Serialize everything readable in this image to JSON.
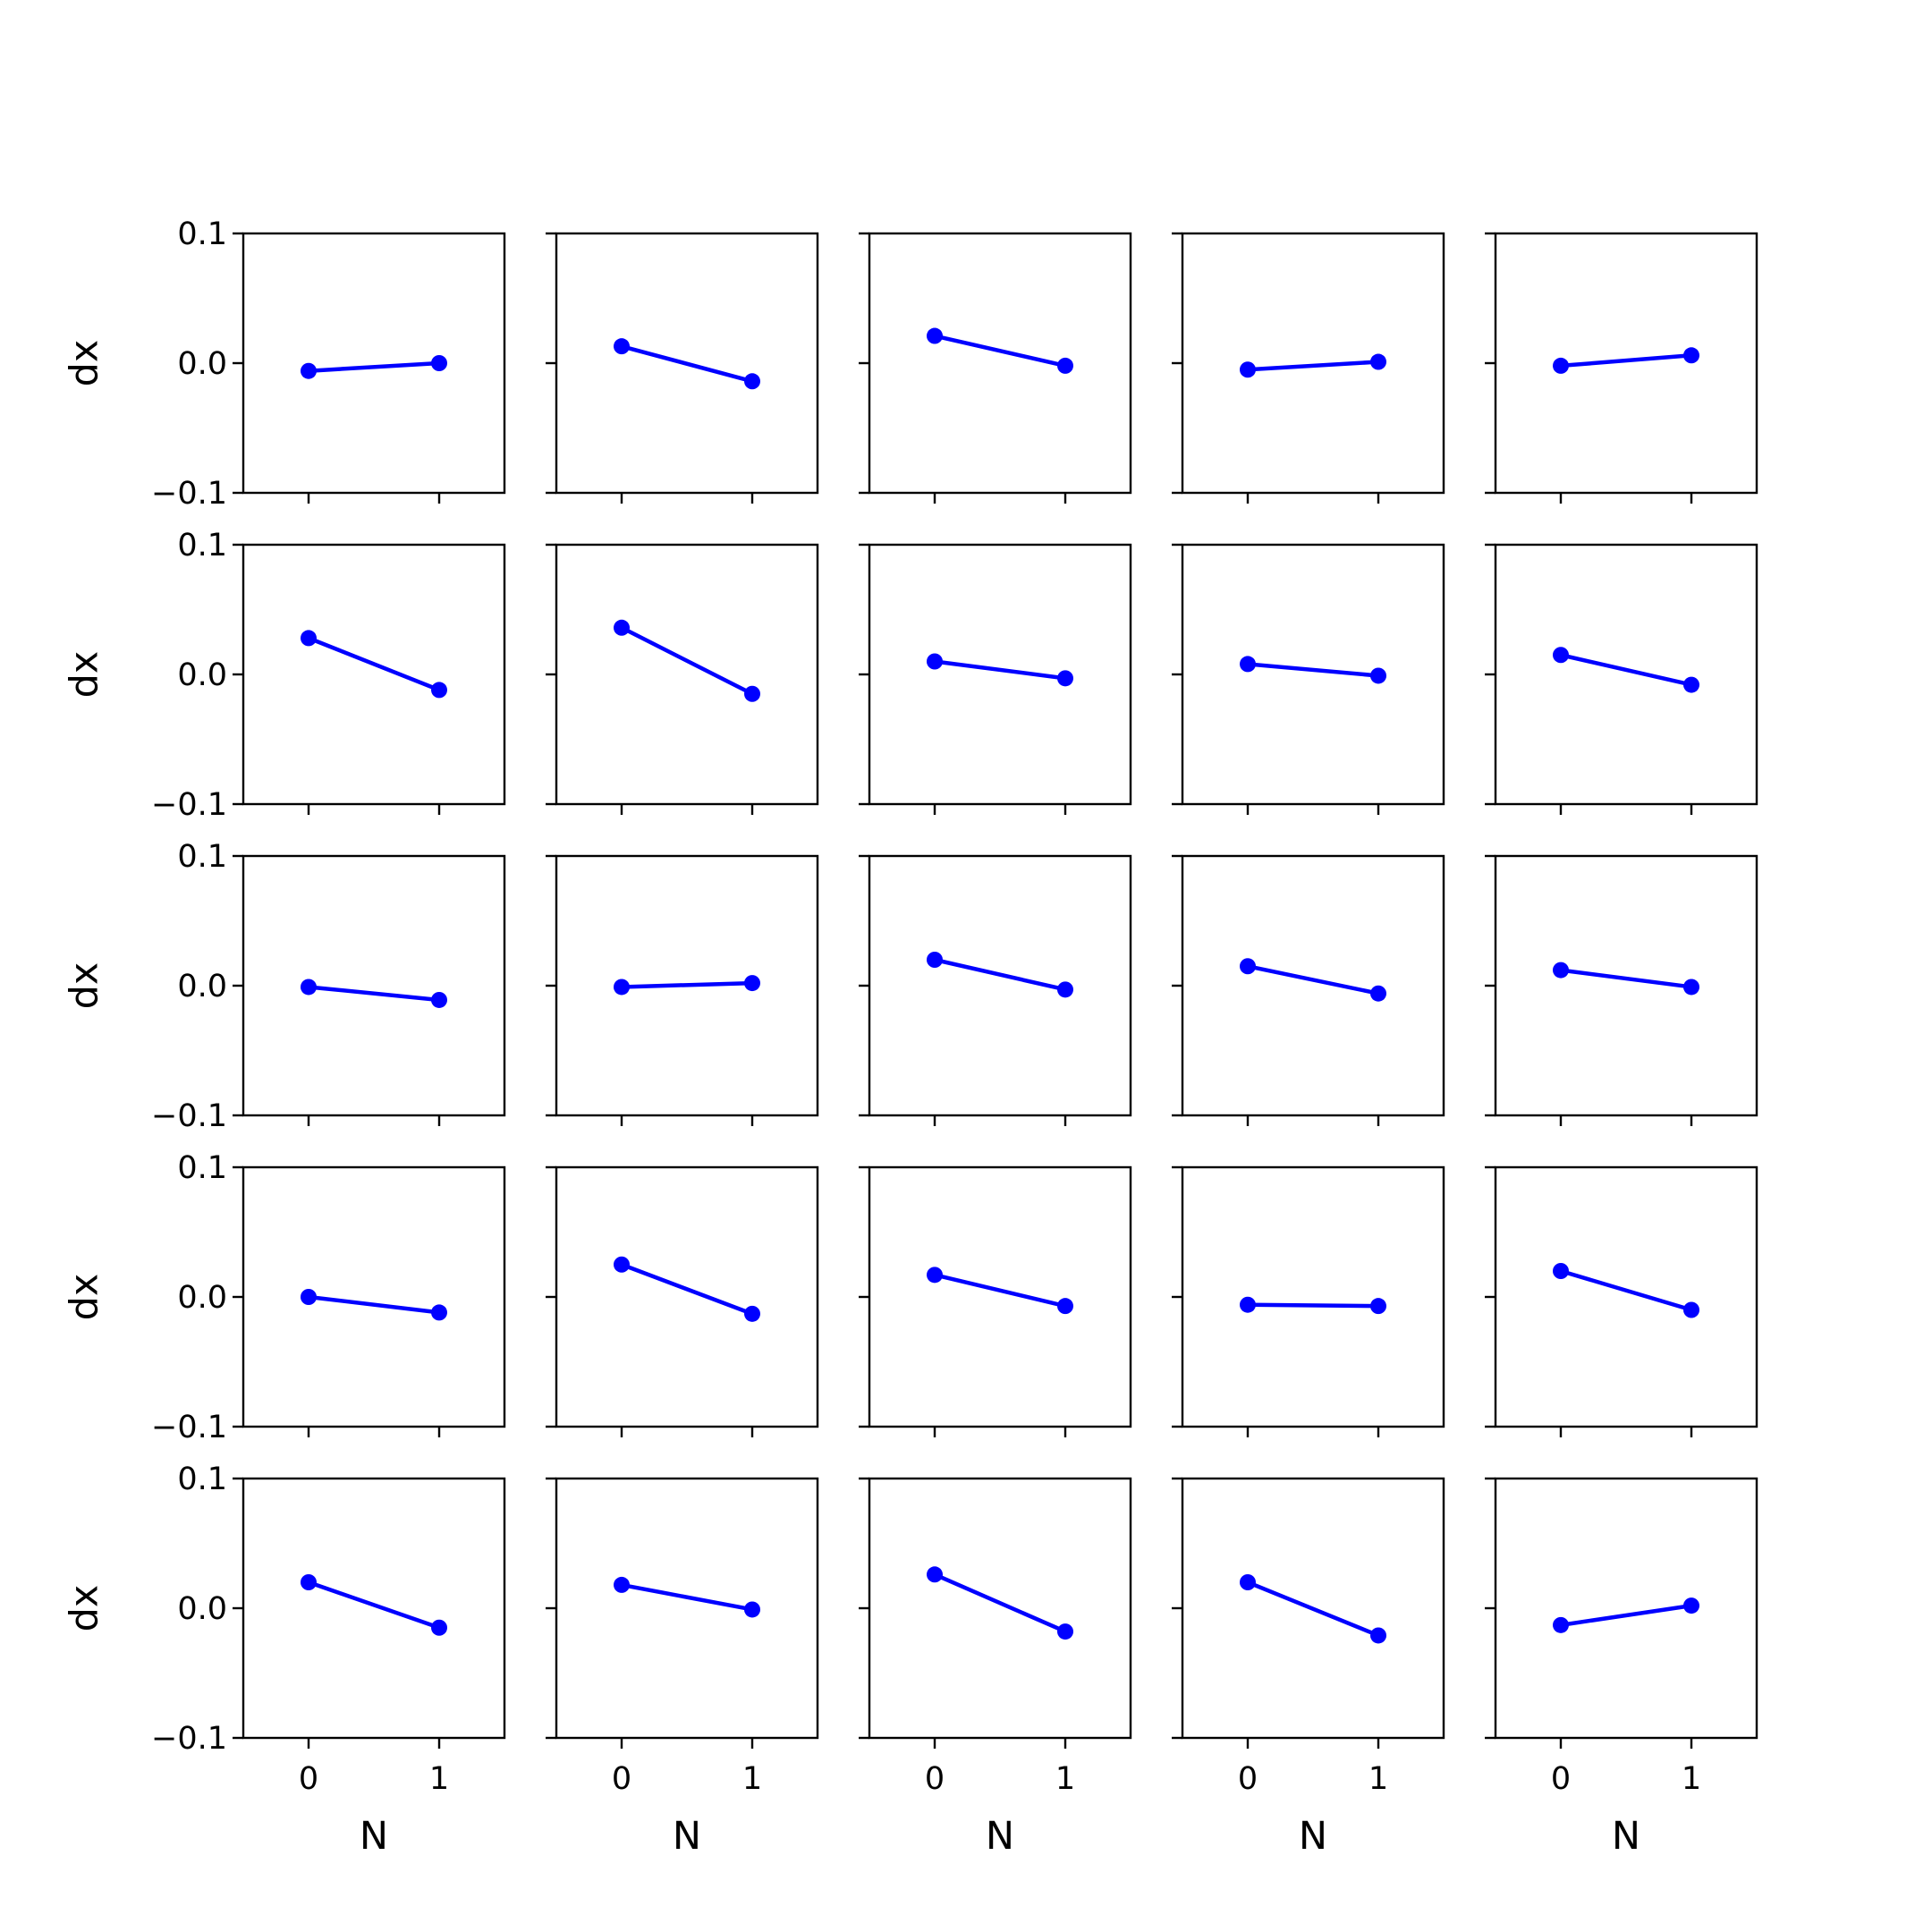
{
  "chart_data": {
    "type": "line",
    "layout": "5x5 small multiples",
    "xlabel": "N",
    "ylabel": "dx",
    "x": [
      0,
      1
    ],
    "xticks": [
      "0",
      "1"
    ],
    "yticks": [
      "0.1",
      "0.0",
      "−0.1"
    ],
    "ylim": [
      -0.1,
      0.1
    ],
    "xlim": [
      -0.5,
      1.5
    ],
    "grid": false,
    "line_color": "#0000ff",
    "panels": [
      [
        [
          -0.006,
          0.0
        ],
        [
          0.013,
          -0.014
        ],
        [
          0.021,
          -0.002
        ],
        [
          -0.005,
          0.001
        ],
        [
          -0.002,
          0.006
        ]
      ],
      [
        [
          0.028,
          -0.012
        ],
        [
          0.036,
          -0.015
        ],
        [
          0.01,
          -0.003
        ],
        [
          0.008,
          -0.001
        ],
        [
          0.015,
          -0.008
        ]
      ],
      [
        [
          -0.001,
          -0.011
        ],
        [
          -0.001,
          0.002
        ],
        [
          0.02,
          -0.003
        ],
        [
          0.015,
          -0.006
        ],
        [
          0.012,
          -0.001
        ]
      ],
      [
        [
          0.0,
          -0.012
        ],
        [
          0.025,
          -0.013
        ],
        [
          0.017,
          -0.007
        ],
        [
          -0.006,
          -0.007
        ],
        [
          0.02,
          -0.01
        ]
      ],
      [
        [
          0.02,
          -0.015
        ],
        [
          0.018,
          -0.001
        ],
        [
          0.026,
          -0.018
        ],
        [
          0.02,
          -0.021
        ],
        [
          -0.013,
          0.002
        ]
      ]
    ]
  }
}
